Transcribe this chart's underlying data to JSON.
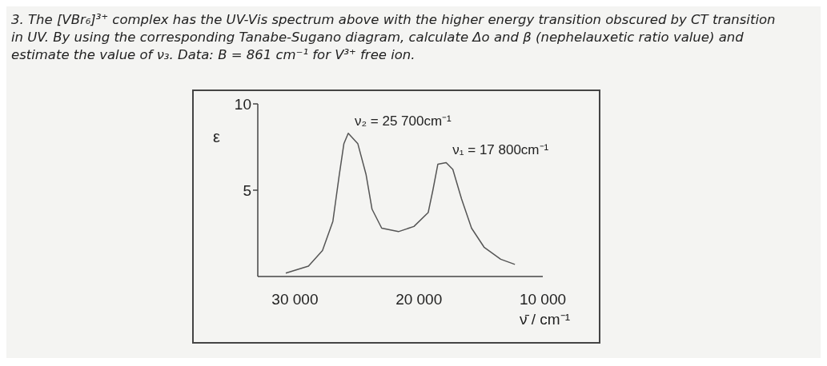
{
  "chart_data": {
    "type": "line",
    "title": "3. The [VBr₆]³⁺ complex has the UV-Vis spectrum above with the higher energy transition obscured by CT transition in UV. By using the corresponding Tanabe-Sugano diagram, calculate Δo and β (nephelauxetic ratio value) and estimate the value of ν₃. Data: B = 861 cm⁻¹ for V³⁺ free ion.",
    "xlabel": "ν̄ / cm⁻¹",
    "ylabel": "ε",
    "x": [
      30740,
      28910,
      27780,
      26940,
      26440,
      26050,
      25700,
      24930,
      24260,
      23780,
      23000,
      21650,
      20400,
      19250,
      18870,
      18470,
      17800,
      17260,
      16560,
      15750,
      14740,
      13400,
      12250
    ],
    "series": [
      {
        "color": "#555555",
        "values": [
          0.2,
          0.6,
          1.5,
          3.2,
          5.8,
          7.7,
          8.3,
          7.7,
          5.9,
          3.9,
          2.8,
          2.6,
          2.9,
          3.7,
          5.0,
          6.5,
          6.6,
          6.2,
          4.5,
          2.8,
          1.7,
          1.0,
          0.7
        ]
      }
    ],
    "xlim": [
      33000,
      10000
    ],
    "xticks": [
      {
        "value": 30000,
        "label": "30 000"
      },
      {
        "value": 20000,
        "label": "20 000"
      },
      {
        "value": 10000,
        "label": "10 000"
      }
    ],
    "ylim": [
      0,
      10
    ],
    "yticks": [
      5,
      10
    ],
    "annotations": [
      {
        "text": "ν₂ = 25 700cm⁻¹",
        "x": 25700,
        "y": 8.3
      },
      {
        "text": "ν₁ = 17 800cm⁻¹",
        "x": 17800,
        "y": 6.6
      }
    ],
    "grid": false,
    "legend": false,
    "marker": "none",
    "line_style": "solid"
  }
}
